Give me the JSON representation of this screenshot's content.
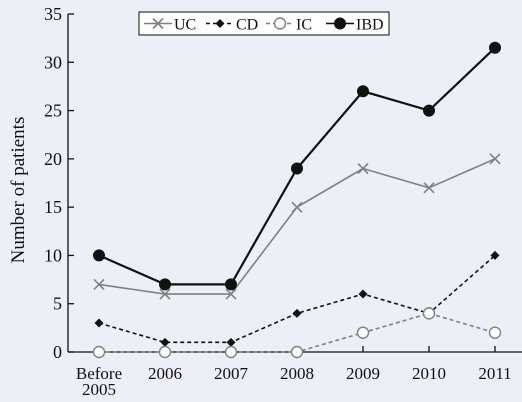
{
  "chart_data": {
    "type": "line",
    "title": "",
    "xlabel": "",
    "ylabel": "Number of patients",
    "categories": [
      "Before 2005",
      "2006",
      "2007",
      "2008",
      "2009",
      "2010",
      "2011"
    ],
    "ylim": [
      0,
      35
    ],
    "yticks": [
      0,
      5,
      10,
      15,
      20,
      25,
      30,
      35
    ],
    "grid": false,
    "legend_position": "top",
    "series": [
      {
        "name": "UC",
        "marker": "x",
        "line": "solid",
        "color": "#808080",
        "values": [
          7,
          6,
          6,
          15,
          19,
          17,
          20
        ]
      },
      {
        "name": "CD",
        "marker": "diamond",
        "line": "dashed",
        "color": "#111111",
        "values": [
          3,
          1,
          1,
          4,
          6,
          4,
          10
        ]
      },
      {
        "name": "IC",
        "marker": "open-circle",
        "line": "dashed",
        "color": "#808080",
        "values": [
          0,
          0,
          0,
          0,
          2,
          4,
          2
        ]
      },
      {
        "name": "IBD",
        "marker": "filled-circle",
        "line": "solid",
        "color": "#111111",
        "values": [
          10,
          7,
          7,
          19,
          27,
          25,
          31.5
        ]
      }
    ]
  }
}
